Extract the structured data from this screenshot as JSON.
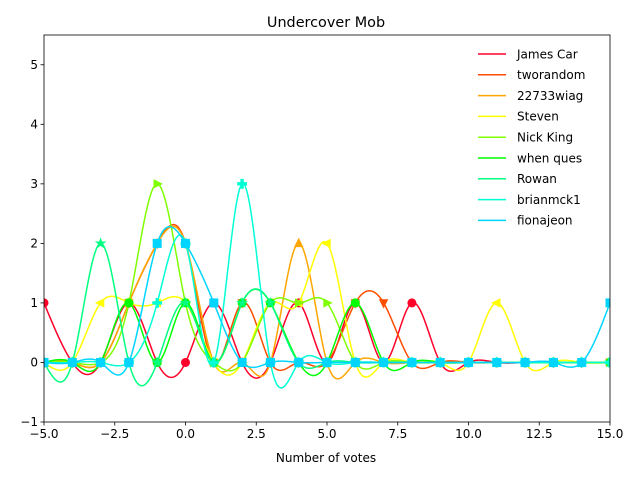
{
  "chart_data": {
    "type": "line",
    "title": "Undercover Mob",
    "xlabel": "Number of votes",
    "ylabel": "",
    "xlim": [
      -5,
      15
    ],
    "ylim": [
      -1,
      5.5
    ],
    "xticks": [
      -5,
      -2.5,
      0,
      2.5,
      5,
      7.5,
      10,
      12.5,
      15
    ],
    "xtick_labels": [
      "−5.0",
      "−2.5",
      "0.0",
      "2.5",
      "5.0",
      "7.5",
      "10.0",
      "12.5",
      "15.0"
    ],
    "yticks": [
      -1,
      0,
      1,
      2,
      3,
      4,
      5
    ],
    "ytick_labels": [
      "−1",
      "0",
      "1",
      "2",
      "3",
      "4",
      "5"
    ],
    "grid": false,
    "legend_position": "upper right",
    "x": [
      -5,
      -4,
      -3,
      -2,
      -1,
      0,
      1,
      2,
      3,
      4,
      5,
      6,
      7,
      8,
      9,
      10,
      11,
      12,
      13,
      14,
      15
    ],
    "series": [
      {
        "name": "James Car",
        "color": "#ff0029",
        "marker": "circle",
        "values": [
          1,
          0,
          0,
          1,
          0,
          0,
          1,
          0,
          0,
          1,
          0,
          1,
          0,
          1,
          0,
          0,
          0,
          0,
          0,
          0,
          0
        ]
      },
      {
        "name": "tworandom",
        "color": "#ff4d00",
        "marker": "triangle-down",
        "values": [
          0,
          0,
          0,
          1,
          2,
          2,
          0,
          1,
          0,
          0,
          0,
          1,
          1,
          0,
          0,
          0,
          0,
          0,
          0,
          0,
          0
        ]
      },
      {
        "name": "22733wiag",
        "color": "#ffa500",
        "marker": "triangle-up",
        "values": [
          0,
          0,
          0,
          1,
          2,
          2,
          0,
          0,
          0,
          2,
          0,
          0,
          0,
          0,
          0,
          0,
          0,
          0,
          0,
          0,
          0
        ]
      },
      {
        "name": "Steven",
        "color": "#ffff00",
        "marker": "triangle-left",
        "values": [
          0,
          0,
          1,
          1,
          1,
          1,
          0,
          0,
          1,
          1,
          2,
          0,
          0,
          0,
          0,
          0,
          1,
          0,
          0,
          0,
          0
        ]
      },
      {
        "name": "Nick King",
        "color": "#80ff00",
        "marker": "triangle-right",
        "values": [
          0,
          0,
          0,
          1,
          3,
          1,
          0,
          0,
          1,
          1,
          1,
          0,
          0,
          0,
          0,
          0,
          0,
          0,
          0,
          0,
          0
        ]
      },
      {
        "name": "when ques",
        "color": "#00ff00",
        "marker": "octagon",
        "values": [
          0,
          0,
          0,
          1,
          0,
          1,
          0,
          1,
          1,
          0,
          0,
          1,
          0,
          0,
          0,
          0,
          0,
          0,
          0,
          0,
          0
        ]
      },
      {
        "name": "Rowan",
        "color": "#00ff80",
        "marker": "star",
        "values": [
          0,
          0,
          2,
          0,
          0,
          1,
          0,
          1,
          1,
          0,
          0,
          0,
          0,
          0,
          0,
          0,
          0,
          0,
          0,
          0,
          0
        ]
      },
      {
        "name": "brianmck1",
        "color": "#00ffd5",
        "marker": "plus",
        "values": [
          0,
          0,
          0,
          0,
          1,
          2,
          0,
          3,
          0,
          0,
          0,
          0,
          0,
          0,
          0,
          0,
          0,
          0,
          0,
          0,
          0
        ]
      },
      {
        "name": "fionajeon",
        "color": "#00d5ff",
        "marker": "square",
        "values": [
          0,
          0,
          0,
          0,
          2,
          2,
          1,
          0,
          0,
          0,
          0,
          0,
          0,
          0,
          0,
          0,
          0,
          0,
          0,
          0,
          1
        ]
      }
    ]
  }
}
